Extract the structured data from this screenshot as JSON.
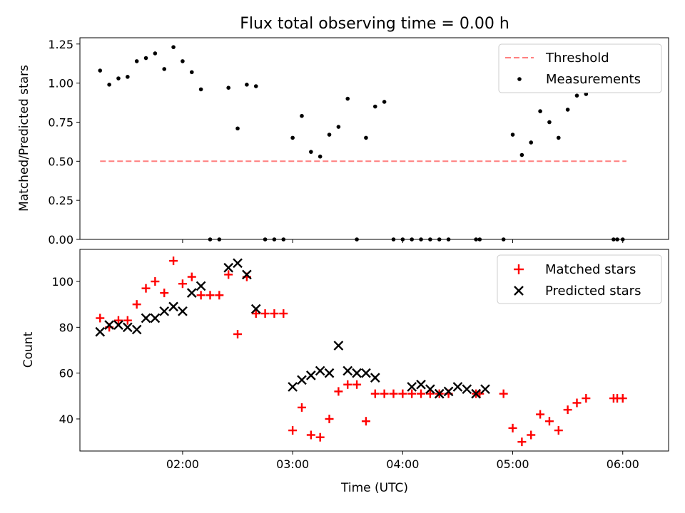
{
  "figure_title": "Flux total observing time = 0.00 h",
  "chart_data": [
    {
      "type": "scatter",
      "ylabel": "Matched/Predicted stars",
      "xlabel": "",
      "xlim": [
        "01:04",
        "06:25"
      ],
      "ylim": [
        0,
        1.29
      ],
      "yticks": [
        0,
        0.25,
        0.5,
        0.75,
        1.0,
        1.25
      ],
      "ytick_labels": [
        "0.00",
        "0.25",
        "0.50",
        "0.75",
        "1.00",
        "1.25"
      ],
      "legend_position": "top-right",
      "grid": false,
      "series": [
        {
          "name": "Threshold",
          "kind": "line",
          "style": "dashed",
          "color": "#ff7f7f",
          "x": [
            "01:15",
            "06:02"
          ],
          "y": [
            0.5,
            0.5
          ]
        },
        {
          "name": "Measurements",
          "kind": "scatter",
          "marker": "dot",
          "color": "#000000",
          "x": [
            "01:15",
            "01:20",
            "01:25",
            "01:30",
            "01:35",
            "01:40",
            "01:45",
            "01:50",
            "01:55",
            "02:00",
            "02:05",
            "02:10",
            "02:15",
            "02:20",
            "02:25",
            "02:30",
            "02:35",
            "02:40",
            "02:45",
            "02:50",
            "02:55",
            "03:00",
            "03:05",
            "03:10",
            "03:15",
            "03:20",
            "03:25",
            "03:30",
            "03:35",
            "03:40",
            "03:45",
            "03:50",
            "03:55",
            "04:00",
            "04:05",
            "04:10",
            "04:15",
            "04:20",
            "04:25",
            "04:40",
            "04:42",
            "04:55",
            "05:00",
            "05:05",
            "05:10",
            "05:15",
            "05:20",
            "05:25",
            "05:30",
            "05:35",
            "05:40",
            "05:55",
            "05:57",
            "06:00"
          ],
          "y": [
            1.08,
            0.99,
            1.03,
            1.04,
            1.14,
            1.16,
            1.19,
            1.09,
            1.23,
            1.14,
            1.07,
            0.96,
            0.0,
            0.0,
            0.97,
            0.71,
            0.99,
            0.98,
            0.0,
            0.0,
            0.0,
            0.65,
            0.79,
            0.56,
            0.53,
            0.67,
            0.72,
            0.9,
            0.0,
            0.65,
            0.85,
            0.88,
            0.0,
            0.0,
            0.0,
            0.0,
            0.0,
            0.0,
            0.0,
            0.0,
            0.0,
            0.0,
            0.67,
            0.54,
            0.62,
            0.82,
            0.75,
            0.65,
            0.83,
            0.92,
            0.93,
            0.0,
            0.0,
            0.0
          ]
        }
      ]
    },
    {
      "type": "scatter",
      "ylabel": "Count",
      "xlabel": "Time (UTC)",
      "xlim": [
        "01:04",
        "06:25"
      ],
      "ylim": [
        26,
        114
      ],
      "yticks": [
        40,
        60,
        80,
        100
      ],
      "ytick_labels": [
        "40",
        "60",
        "80",
        "100"
      ],
      "xticks": [
        "02:00",
        "03:00",
        "04:00",
        "05:00",
        "06:00"
      ],
      "xtick_labels": [
        "02:00",
        "03:00",
        "04:00",
        "05:00",
        "06:00"
      ],
      "legend_position": "top-right",
      "grid": false,
      "series": [
        {
          "name": "Matched stars",
          "kind": "scatter",
          "marker": "plus",
          "color": "#ff0000",
          "x": [
            "01:15",
            "01:20",
            "01:25",
            "01:30",
            "01:35",
            "01:40",
            "01:45",
            "01:50",
            "01:55",
            "02:00",
            "02:05",
            "02:10",
            "02:15",
            "02:20",
            "02:25",
            "02:30",
            "02:35",
            "02:40",
            "02:45",
            "02:50",
            "02:55",
            "03:00",
            "03:05",
            "03:10",
            "03:15",
            "03:20",
            "03:25",
            "03:30",
            "03:35",
            "03:40",
            "03:45",
            "03:50",
            "03:55",
            "04:00",
            "04:05",
            "04:10",
            "04:15",
            "04:20",
            "04:25",
            "04:40",
            "04:42",
            "04:55",
            "05:00",
            "05:05",
            "05:10",
            "05:15",
            "05:20",
            "05:25",
            "05:30",
            "05:35",
            "05:40",
            "05:55",
            "05:57",
            "06:00"
          ],
          "y": [
            84,
            80,
            83,
            83,
            90,
            97,
            100,
            95,
            109,
            99,
            102,
            94,
            94,
            94,
            103,
            77,
            102,
            86,
            86,
            86,
            86,
            35,
            45,
            33,
            32,
            40,
            52,
            55,
            55,
            39,
            51,
            51,
            51,
            51,
            51,
            51,
            51,
            51,
            51,
            51,
            51,
            51,
            36,
            30,
            33,
            42,
            39,
            35,
            44,
            47,
            49,
            49,
            49,
            49
          ]
        },
        {
          "name": "Predicted stars",
          "kind": "scatter",
          "marker": "x",
          "color": "#000000",
          "x": [
            "01:15",
            "01:20",
            "01:25",
            "01:30",
            "01:35",
            "01:40",
            "01:45",
            "01:50",
            "01:55",
            "02:00",
            "02:05",
            "02:10",
            "02:25",
            "02:30",
            "02:35",
            "02:40",
            "03:00",
            "03:05",
            "03:10",
            "03:15",
            "03:20",
            "03:25",
            "03:30",
            "03:35",
            "03:40",
            "03:45",
            "04:05",
            "04:10",
            "04:15",
            "04:20",
            "04:25",
            "04:30",
            "04:35",
            "04:40",
            "04:45"
          ],
          "y": [
            78,
            81,
            81,
            80,
            79,
            84,
            84,
            87,
            89,
            87,
            95,
            98,
            106,
            108,
            103,
            88,
            54,
            57,
            59,
            61,
            60,
            72,
            61,
            60,
            60,
            58,
            54,
            55,
            53,
            51,
            52,
            54,
            53,
            51,
            53
          ]
        }
      ]
    }
  ]
}
